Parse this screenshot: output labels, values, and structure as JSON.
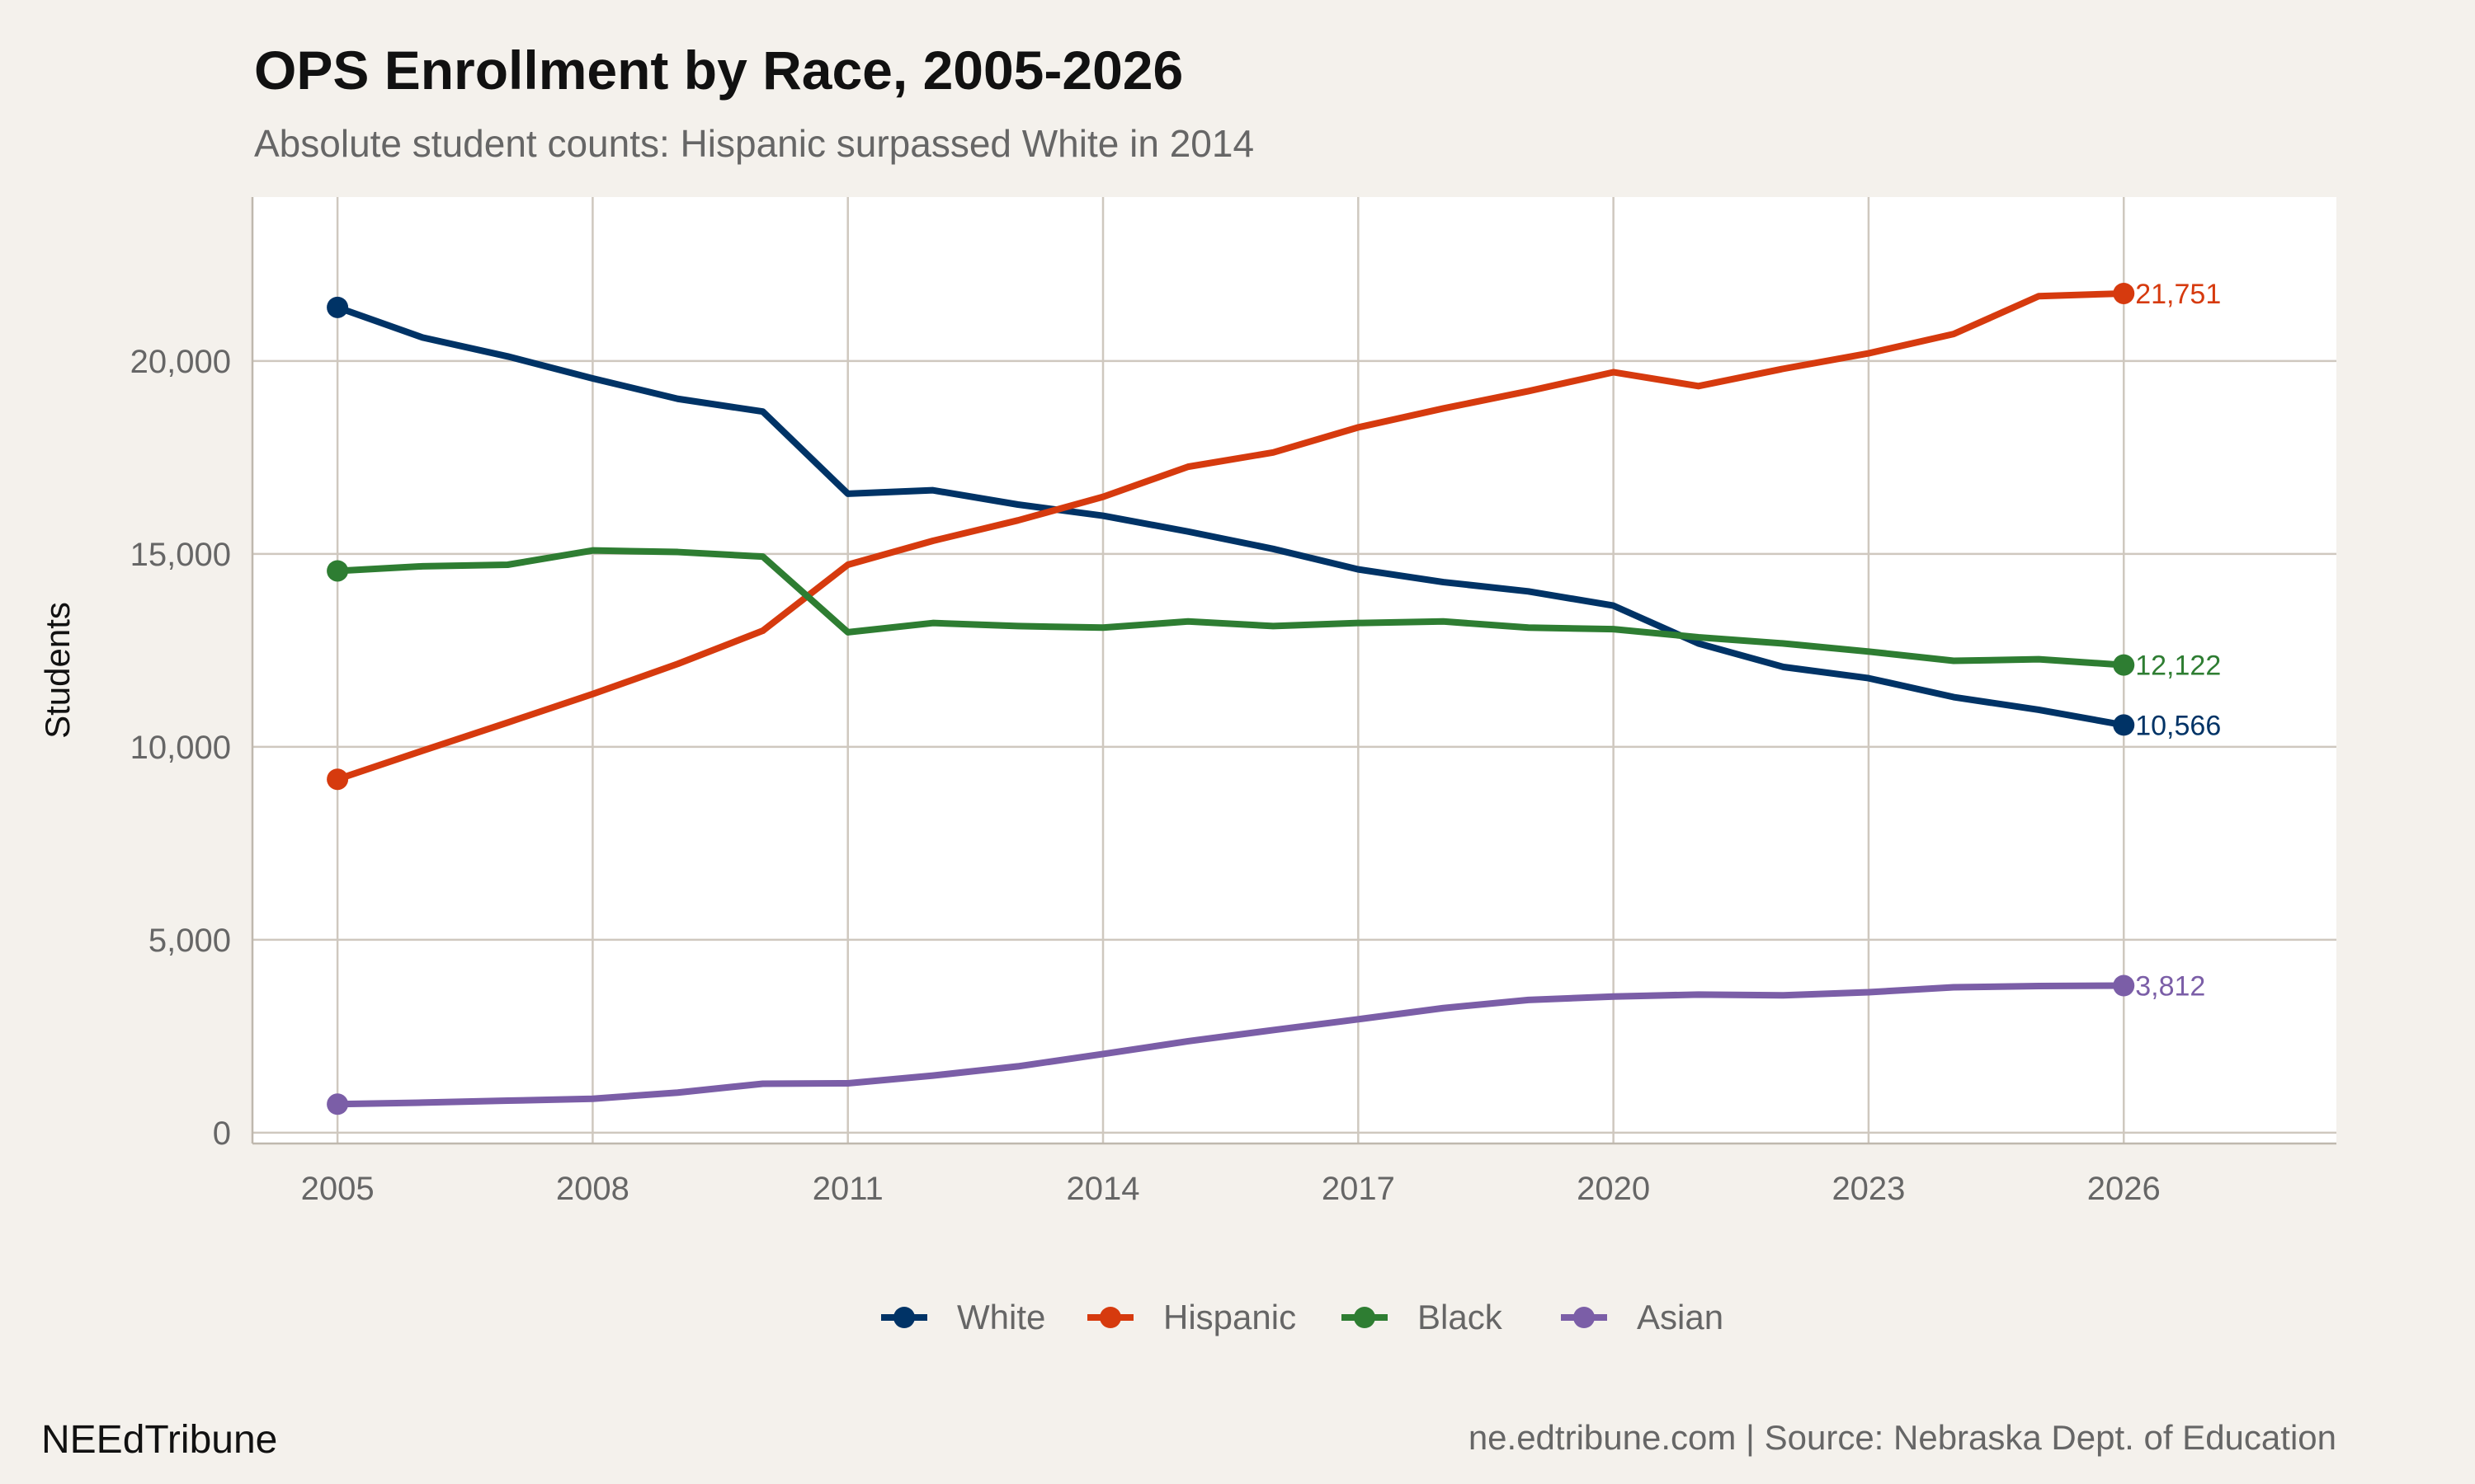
{
  "chart_data": {
    "type": "line",
    "title": "OPS Enrollment by Race, 2005-2026",
    "subtitle": "Absolute student counts: Hispanic surpassed White in 2014",
    "xlabel": "",
    "ylabel": "Students",
    "x": [
      2005,
      2006,
      2007,
      2008,
      2009,
      2010,
      2011,
      2012,
      2013,
      2014,
      2015,
      2016,
      2017,
      2018,
      2019,
      2020,
      2021,
      2022,
      2023,
      2024,
      2025,
      2026
    ],
    "xlim": [
      2004,
      2028.5
    ],
    "ylim": [
      -280,
      24250
    ],
    "x_ticks": [
      2005,
      2008,
      2011,
      2014,
      2017,
      2020,
      2023,
      2026
    ],
    "y_ticks": [
      0,
      5000,
      10000,
      15000,
      20000
    ],
    "y_tick_labels": [
      "0",
      "5,000",
      "10,000",
      "15,000",
      "20,000"
    ],
    "grid": true,
    "legend_position": "bottom",
    "series": [
      {
        "name": "White",
        "color": "#003366",
        "end_label": "10,566",
        "values": [
          21390,
          20610,
          20120,
          19550,
          19020,
          18690,
          16560,
          16650,
          16280,
          15990,
          15580,
          15130,
          14600,
          14270,
          14030,
          13660,
          12680,
          12070,
          11780,
          11290,
          10960,
          10566
        ]
      },
      {
        "name": "Hispanic",
        "color": "#d63a0e",
        "end_label": "21,751",
        "values": [
          9160,
          9900,
          10630,
          11370,
          12150,
          13010,
          14720,
          15340,
          15870,
          16480,
          17260,
          17630,
          18280,
          18770,
          19220,
          19710,
          19350,
          19800,
          20200,
          20700,
          21680,
          21751
        ]
      },
      {
        "name": "Black",
        "color": "#2e7d32",
        "end_label": "12,122",
        "values": [
          14560,
          14680,
          14720,
          15090,
          15050,
          14930,
          12970,
          13210,
          13130,
          13090,
          13250,
          13130,
          13210,
          13250,
          13090,
          13050,
          12840,
          12680,
          12470,
          12230,
          12270,
          12122
        ]
      },
      {
        "name": "Asian",
        "color": "#7b5ea7",
        "end_label": "3,812",
        "values": [
          740,
          780,
          830,
          880,
          1040,
          1270,
          1280,
          1480,
          1720,
          2040,
          2370,
          2660,
          2940,
          3230,
          3440,
          3530,
          3580,
          3560,
          3640,
          3770,
          3800,
          3812
        ]
      }
    ]
  },
  "footer": {
    "brand": "NEEdTribune",
    "caption": "ne.edtribune.com | Source: Nebraska Dept. of Education"
  }
}
